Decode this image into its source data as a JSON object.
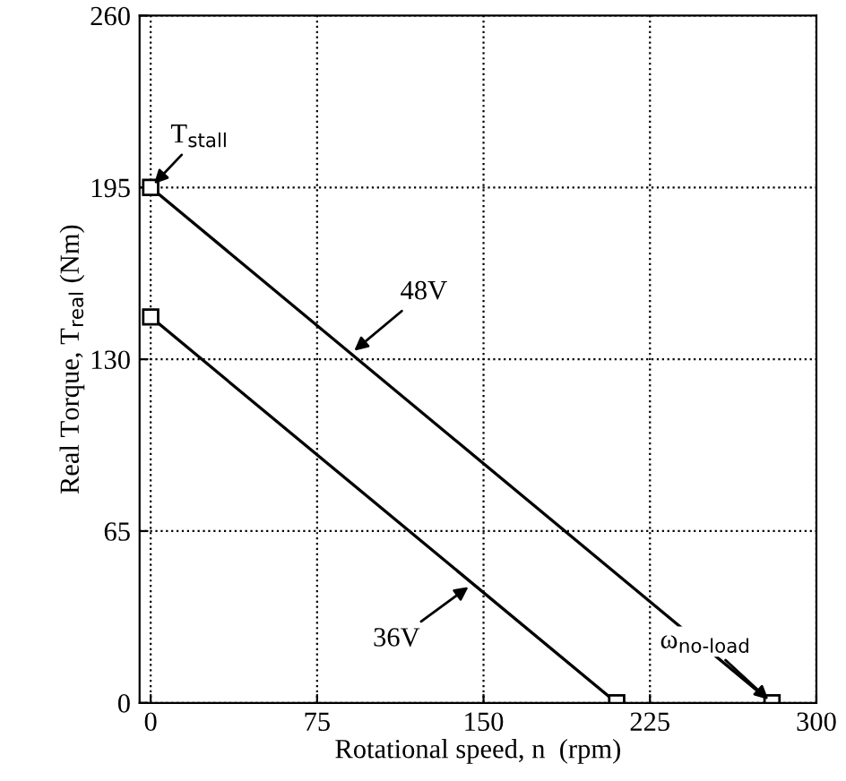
{
  "chart_data": {
    "type": "line",
    "xlabel": "Rotational speed, n  (rpm)",
    "ylabel": "Real Torque, T$_{real}$ (Nm)",
    "xlim": [
      -5,
      300
    ],
    "xticks": [
      0,
      75,
      150,
      225,
      300
    ],
    "ylim": [
      0,
      260
    ],
    "yticks": [
      0,
      65,
      130,
      195,
      260
    ],
    "grid": true,
    "marker": "square",
    "line_style": "solid",
    "legend": false,
    "series": [
      {
        "color": "#000000",
        "x": [
          0,
          280
        ],
        "values": [
          195,
          0
        ]
      },
      {
        "color": "#000000",
        "x": [
          0,
          210
        ],
        "values": [
          146,
          0
        ]
      }
    ],
    "annotations": [
      {
        "text": "48V",
        "x": 90,
        "y": 132
      },
      {
        "text": "36V",
        "x": 145,
        "y": 45
      },
      {
        "text": "T$_{stall}$",
        "x": 0,
        "y": 195
      },
      {
        "text": "ω$_{no-load}$",
        "x": 280,
        "y": 0
      }
    ]
  }
}
